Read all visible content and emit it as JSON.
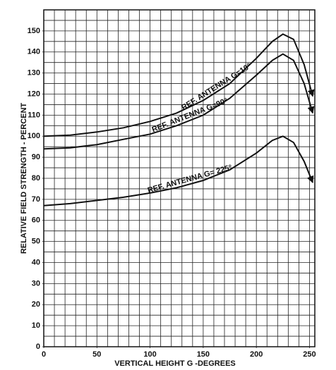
{
  "chart_data": {
    "type": "line",
    "xlabel": "VERTICAL HEIGHT G -DEGREES",
    "ylabel": "RELATIVE FIELD STRENGTH - PERCENT",
    "xlim": [
      0,
      255
    ],
    "ylim": [
      0,
      160
    ],
    "xticks": [
      0,
      50,
      100,
      150,
      200,
      250
    ],
    "yticks": [
      0,
      10,
      20,
      30,
      40,
      50,
      60,
      70,
      80,
      90,
      100,
      110,
      120,
      130,
      140,
      150
    ],
    "grid": true,
    "x_grid_step": 10,
    "y_grid_step": 5,
    "x": [
      0,
      25,
      50,
      75,
      100,
      125,
      150,
      175,
      200,
      215,
      225,
      235,
      245,
      253
    ],
    "series": [
      {
        "name": "REF. ANTENNA G=10°",
        "color": "#111111",
        "values": [
          100,
          100.5,
          102,
          104,
          107,
          111,
          117,
          125,
          137,
          145,
          148.5,
          146,
          134,
          119
        ]
      },
      {
        "name": "REF. ANTENNA G=90°",
        "color": "#111111",
        "values": [
          94,
          94.5,
          96,
          98.5,
          101,
          105,
          110,
          118,
          129,
          136,
          139,
          136,
          125,
          111
        ]
      },
      {
        "name": "REF. ANTENNA G= 225°",
        "color": "#111111",
        "values": [
          67,
          68,
          69.5,
          71,
          73,
          75.5,
          79,
          84,
          92,
          98,
          100,
          97,
          88,
          78
        ]
      }
    ]
  }
}
